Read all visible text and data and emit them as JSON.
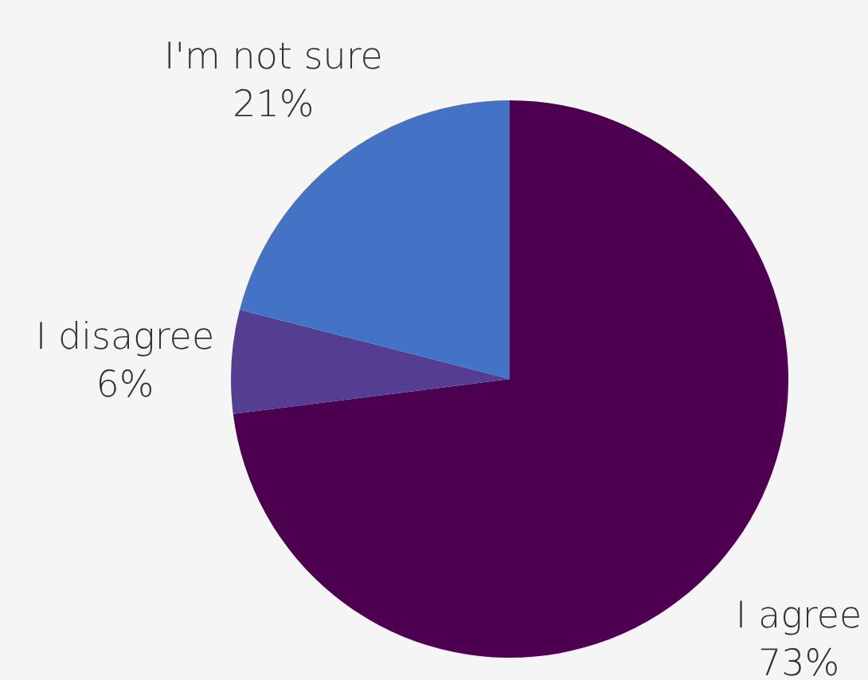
{
  "chart_data": {
    "type": "pie",
    "categories": [
      "I agree",
      "I disagree",
      "I'm not sure"
    ],
    "values": [
      73,
      6,
      21
    ],
    "value_labels": [
      "73%",
      "6%",
      "21%"
    ],
    "colors": [
      "#4e0050",
      "#553d92",
      "#4472c4"
    ],
    "legend": false
  }
}
